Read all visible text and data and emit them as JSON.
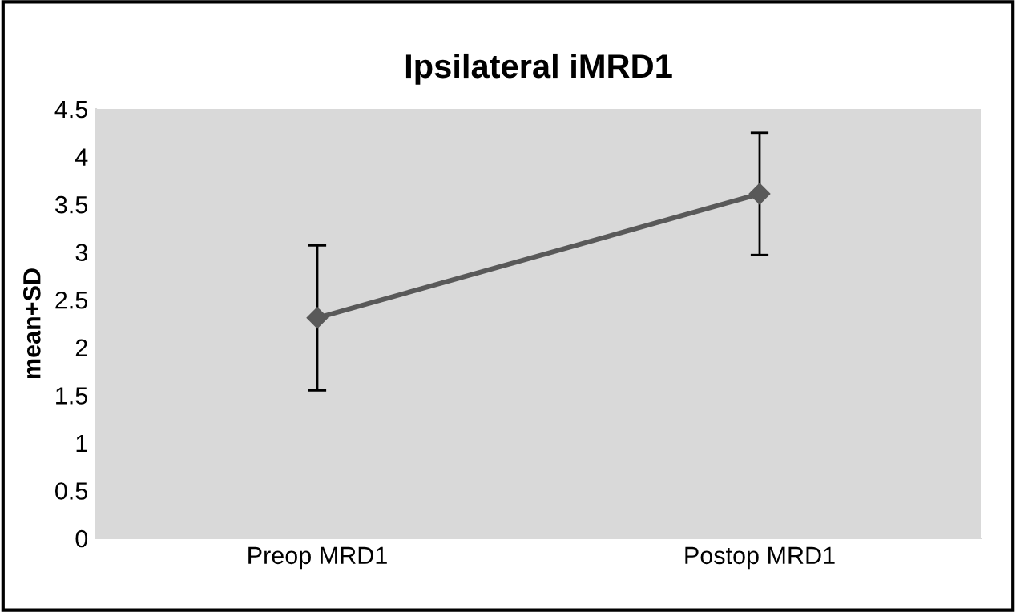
{
  "chart_data": {
    "type": "line",
    "title": "Ipsilateral iMRD1",
    "ylabel": "mean+SD",
    "categories": [
      "Preop MRD1",
      "Postop MRD1"
    ],
    "series": [
      {
        "color": "#595959",
        "values": [
          2.31,
          3.61
        ],
        "errors": [
          0.76,
          0.64
        ]
      }
    ],
    "ylim": [
      0,
      4.5
    ],
    "yticks": [
      0,
      0.5,
      1,
      1.5,
      2,
      2.5,
      3,
      3.5,
      4,
      4.5
    ],
    "grid": false,
    "legend": false,
    "marker": "diamond",
    "line_style": "solid"
  }
}
